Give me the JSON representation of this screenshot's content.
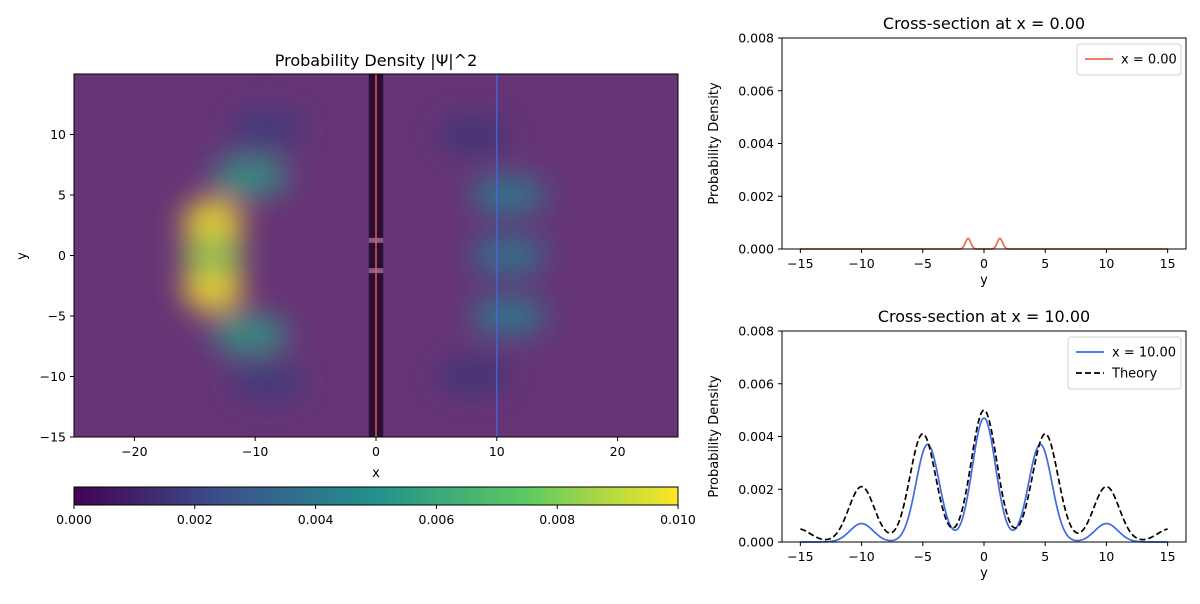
{
  "chart_data": [
    {
      "type": "heatmap",
      "title": "Probability Density |Ψ|^2",
      "xlabel": "x",
      "ylabel": "y",
      "xlim": [
        -25,
        25
      ],
      "ylim": [
        -15,
        15
      ],
      "xticks": [
        -20,
        -10,
        0,
        10,
        20
      ],
      "yticks": [
        -15,
        -10,
        -5,
        0,
        5,
        10
      ],
      "colorbar": {
        "range": [
          0,
          0.01
        ],
        "ticks": [
          "0.000",
          "0.002",
          "0.004",
          "0.006",
          "0.008",
          "0.010"
        ],
        "colors": [
          "#440154",
          "#3b528b",
          "#21918c",
          "#5ec962",
          "#fde725"
        ]
      },
      "barrier": {
        "x": [
          -0.6,
          0.6
        ],
        "slits_y": [
          -1.25,
          1.25
        ],
        "color": "#2a0c34"
      },
      "cross_section_x": [
        0.0,
        10.0
      ],
      "cross_section_colors": [
        "#ee6a50",
        "#4169e1"
      ],
      "blobs": [
        {
          "x": -13.5,
          "y": 2.7,
          "v": 0.012
        },
        {
          "x": -13.5,
          "y": -2.7,
          "v": 0.012
        },
        {
          "x": -13.5,
          "y": 0,
          "v": 0.0085
        },
        {
          "x": -10.5,
          "y": 6.5,
          "v": 0.0055
        },
        {
          "x": -10.5,
          "y": -6.5,
          "v": 0.0055
        },
        {
          "x": -9,
          "y": 10.5,
          "v": 0.0018
        },
        {
          "x": -9,
          "y": -10.5,
          "v": 0.0018
        },
        {
          "x": 11,
          "y": 5,
          "v": 0.0042
        },
        {
          "x": 11,
          "y": -5,
          "v": 0.0042
        },
        {
          "x": 11,
          "y": 0,
          "v": 0.004
        },
        {
          "x": 8,
          "y": 10,
          "v": 0.0016
        },
        {
          "x": 8,
          "y": -10,
          "v": 0.0016
        }
      ]
    },
    {
      "type": "line",
      "title": "Cross-section at x = 0.00",
      "xlabel": "y",
      "ylabel": "Probability Density",
      "xlim": [
        -16.5,
        16.5
      ],
      "ylim": [
        0,
        0.008
      ],
      "xticks": [
        -15,
        -10,
        -5,
        0,
        5,
        10,
        15
      ],
      "yticks": [
        0,
        0.002,
        0.004,
        0.006,
        0.008
      ],
      "ytick_labels": [
        "0.000",
        "0.002",
        "0.004",
        "0.006",
        "0.008"
      ],
      "legend": "upper-right",
      "series": [
        {
          "name": "x = 0.00",
          "color": "#ee6a50",
          "style": "solid",
          "peaks": [
            {
              "y": -1.3,
              "h": 0.0004
            },
            {
              "y": 1.3,
              "h": 0.0004
            }
          ]
        }
      ]
    },
    {
      "type": "line",
      "title": "Cross-section at x = 10.00",
      "xlabel": "y",
      "ylabel": "Probability Density",
      "xlim": [
        -16.5,
        16.5
      ],
      "ylim": [
        0,
        0.008
      ],
      "xticks": [
        -15,
        -10,
        -5,
        0,
        5,
        10,
        15
      ],
      "yticks": [
        0,
        0.002,
        0.004,
        0.006,
        0.008
      ],
      "ytick_labels": [
        "0.000",
        "0.002",
        "0.004",
        "0.006",
        "0.008"
      ],
      "legend": "upper-right",
      "series": [
        {
          "name": "x = 10.00",
          "color": "#4169e1",
          "style": "solid",
          "peaks": [
            {
              "y": 0,
              "h": 0.0047
            },
            {
              "y": -4.6,
              "h": 0.0037
            },
            {
              "y": 4.6,
              "h": 0.0037
            },
            {
              "y": -10,
              "h": 0.0007
            },
            {
              "y": 10,
              "h": 0.0007
            }
          ]
        },
        {
          "name": "Theory",
          "color": "#000000",
          "style": "dashed",
          "peaks": [
            {
              "y": 0,
              "h": 0.005
            },
            {
              "y": -5,
              "h": 0.0041
            },
            {
              "y": 5,
              "h": 0.0041
            },
            {
              "y": -10,
              "h": 0.0021
            },
            {
              "y": 10,
              "h": 0.0021
            },
            {
              "y": -15.2,
              "h": 0.0005
            },
            {
              "y": 15.2,
              "h": 0.0005
            }
          ]
        }
      ]
    }
  ]
}
